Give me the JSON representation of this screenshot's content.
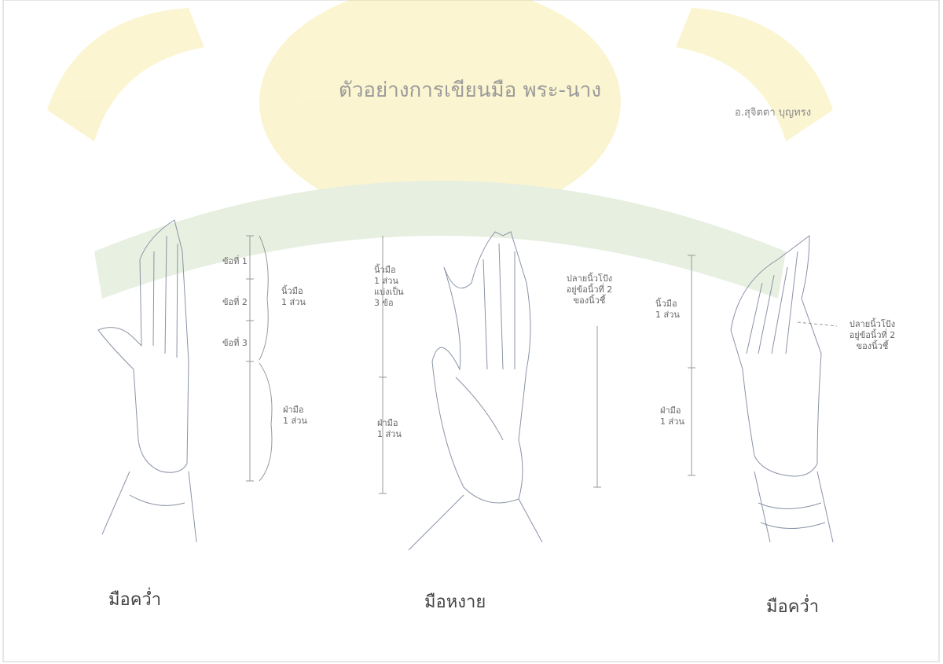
{
  "header": {
    "title": "ตัวอย่างการเขียนมือ พระ-นาง",
    "author": "อ.สุจิตตา บุญทรง"
  },
  "figures": [
    {
      "caption": "มือคว่ำ",
      "notes": [
        [
          "ข้อที่ 1"
        ],
        [
          "ข้อที่ 2"
        ],
        [
          "ข้อที่ 3"
        ],
        [
          "นิ้วมือ",
          "1 ส่วน"
        ],
        [
          "ฝ่ามือ",
          "1 ส่วน"
        ]
      ]
    },
    {
      "caption": "มือหงาย",
      "notes": [
        [
          "นิ้วมือ",
          "1 ส่วน",
          "แบ่งเป็น",
          "3 ข้อ"
        ],
        [
          "ฝ่ามือ",
          "1 ส่วน"
        ],
        [
          "ปลายนิ้วโป้ง",
          "อยู่ข้อนิ้วที่ 2",
          "ของนิ้วชี้"
        ]
      ]
    },
    {
      "caption": "มือคว่ำ",
      "notes": [
        [
          "นิ้วมือ",
          "1 ส่วน"
        ],
        [
          "ฝ่ามือ",
          "1 ส่วน"
        ],
        [
          "ปลายนิ้วโป้ง",
          "อยู่ข้อนิ้วที่ 2",
          "ของนิ้วชี้"
        ]
      ]
    }
  ]
}
